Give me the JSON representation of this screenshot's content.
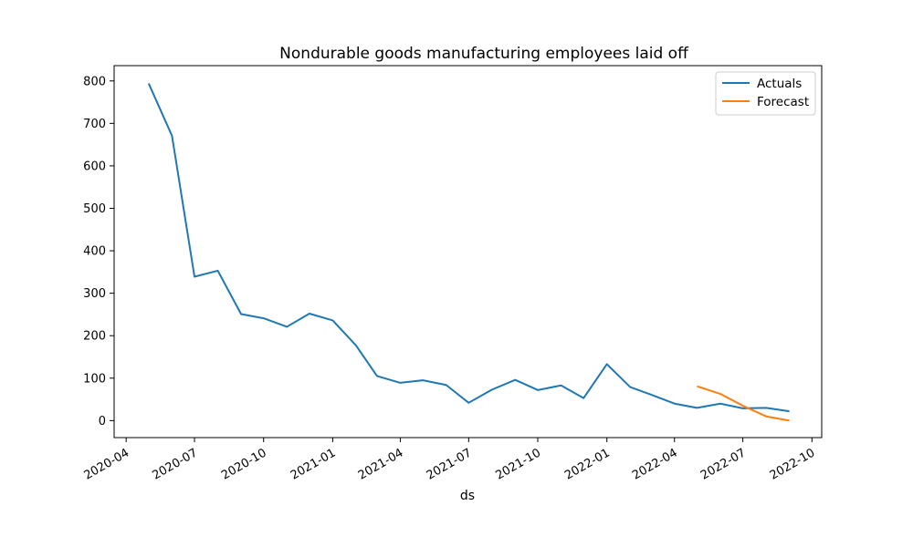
{
  "chart_data": {
    "type": "line",
    "title": "Nondurable goods manufacturing employees laid off",
    "xlabel": "ds",
    "ylabel": "",
    "xlim": [
      "2020-03-16",
      "2022-10-14"
    ],
    "ylim": [
      -40,
      836
    ],
    "x_ticks": [
      "2020-04",
      "2020-07",
      "2020-10",
      "2021-01",
      "2021-04",
      "2021-07",
      "2021-10",
      "2022-01",
      "2022-04",
      "2022-07",
      "2022-10"
    ],
    "y_ticks": [
      0,
      100,
      200,
      300,
      400,
      500,
      600,
      700,
      800
    ],
    "grid": false,
    "legend_position": "top-right",
    "series": [
      {
        "name": "Actuals",
        "color": "#1f77b4",
        "x": [
          "2020-05-01",
          "2020-06-01",
          "2020-07-01",
          "2020-08-01",
          "2020-09-01",
          "2020-10-01",
          "2020-11-01",
          "2020-12-01",
          "2021-01-01",
          "2021-02-01",
          "2021-03-01",
          "2021-04-01",
          "2021-05-01",
          "2021-06-01",
          "2021-07-01",
          "2021-08-01",
          "2021-09-01",
          "2021-10-01",
          "2021-11-01",
          "2021-12-01",
          "2022-01-01",
          "2022-02-01",
          "2022-03-01",
          "2022-04-01",
          "2022-05-01",
          "2022-06-01",
          "2022-07-01",
          "2022-08-01",
          "2022-09-01"
        ],
        "values": [
          794,
          671,
          339,
          353,
          251,
          241,
          221,
          252,
          236,
          177,
          105,
          89,
          95,
          84,
          42,
          73,
          96,
          72,
          83,
          53,
          133,
          79,
          61,
          40,
          30,
          40,
          29,
          30,
          22
        ]
      },
      {
        "name": "Forecast",
        "color": "#ff7f0e",
        "x": [
          "2022-05-01",
          "2022-06-01",
          "2022-07-01",
          "2022-08-01",
          "2022-09-01"
        ],
        "values": [
          81,
          63,
          35,
          10,
          0
        ]
      }
    ]
  }
}
